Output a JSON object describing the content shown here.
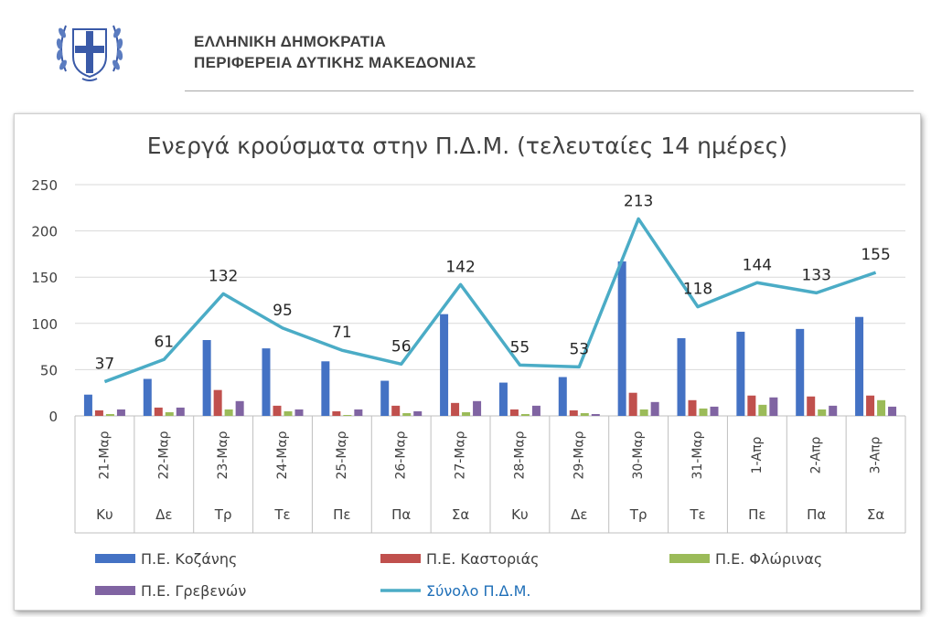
{
  "header": {
    "line1": "ΕΛΛΗΝΙΚΗ ΔΗΜΟΚΡΑΤΙΑ",
    "line2": "ΠΕΡΙΦΕΡΕΙΑ ΔΥΤΙΚΗΣ ΜΑΚΕΔΟΝΙΑΣ",
    "emblem_icon": "greek-coat-of-arms-icon"
  },
  "chart_data": {
    "type": "bar",
    "title": "Ενεργά κρούσματα στην Π.Δ.Μ. (τελευταίες 14 ημέρες)",
    "categories": [
      "21-Μαρ",
      "22-Μαρ",
      "23-Μαρ",
      "24-Μαρ",
      "25-Μαρ",
      "26-Μαρ",
      "27-Μαρ",
      "28-Μαρ",
      "29-Μαρ",
      "30-Μαρ",
      "31-Μαρ",
      "1-Απρ",
      "2-Απρ",
      "3-Απρ"
    ],
    "days": [
      "Κυ",
      "Δε",
      "Τρ",
      "Τε",
      "Πε",
      "Πα",
      "Σα",
      "Κυ",
      "Δε",
      "Τρ",
      "Τε",
      "Πε",
      "Πα",
      "Σα"
    ],
    "ylim": [
      0,
      250
    ],
    "yticks": [
      0,
      50,
      100,
      150,
      200,
      250
    ],
    "grid": true,
    "legend_position": "bottom",
    "series": [
      {
        "name": "Π.Ε. Κοζάνης",
        "type": "bar",
        "color": "#4472C4",
        "values": [
          23,
          40,
          82,
          73,
          59,
          38,
          110,
          36,
          42,
          167,
          84,
          91,
          94,
          107
        ]
      },
      {
        "name": "Π.Ε. Καστοριάς",
        "type": "bar",
        "color": "#C0504D",
        "values": [
          6,
          9,
          28,
          11,
          5,
          11,
          14,
          7,
          6,
          25,
          17,
          22,
          21,
          22
        ]
      },
      {
        "name": "Π.Ε. Φλώρινας",
        "type": "bar",
        "color": "#9BBB59",
        "values": [
          2,
          4,
          7,
          5,
          1,
          3,
          4,
          2,
          3,
          7,
          8,
          12,
          7,
          17
        ]
      },
      {
        "name": "Π.Ε. Γρεβενών",
        "type": "bar",
        "color": "#8064A2",
        "values": [
          7,
          9,
          16,
          7,
          7,
          5,
          16,
          11,
          2,
          15,
          10,
          20,
          11,
          10
        ]
      },
      {
        "name": "Σύνολο Π.Δ.Μ.",
        "type": "line",
        "color": "#4BACC6",
        "values": [
          37,
          61,
          132,
          95,
          71,
          56,
          142,
          55,
          53,
          213,
          118,
          144,
          133,
          155
        ],
        "data_labels": true
      }
    ]
  }
}
